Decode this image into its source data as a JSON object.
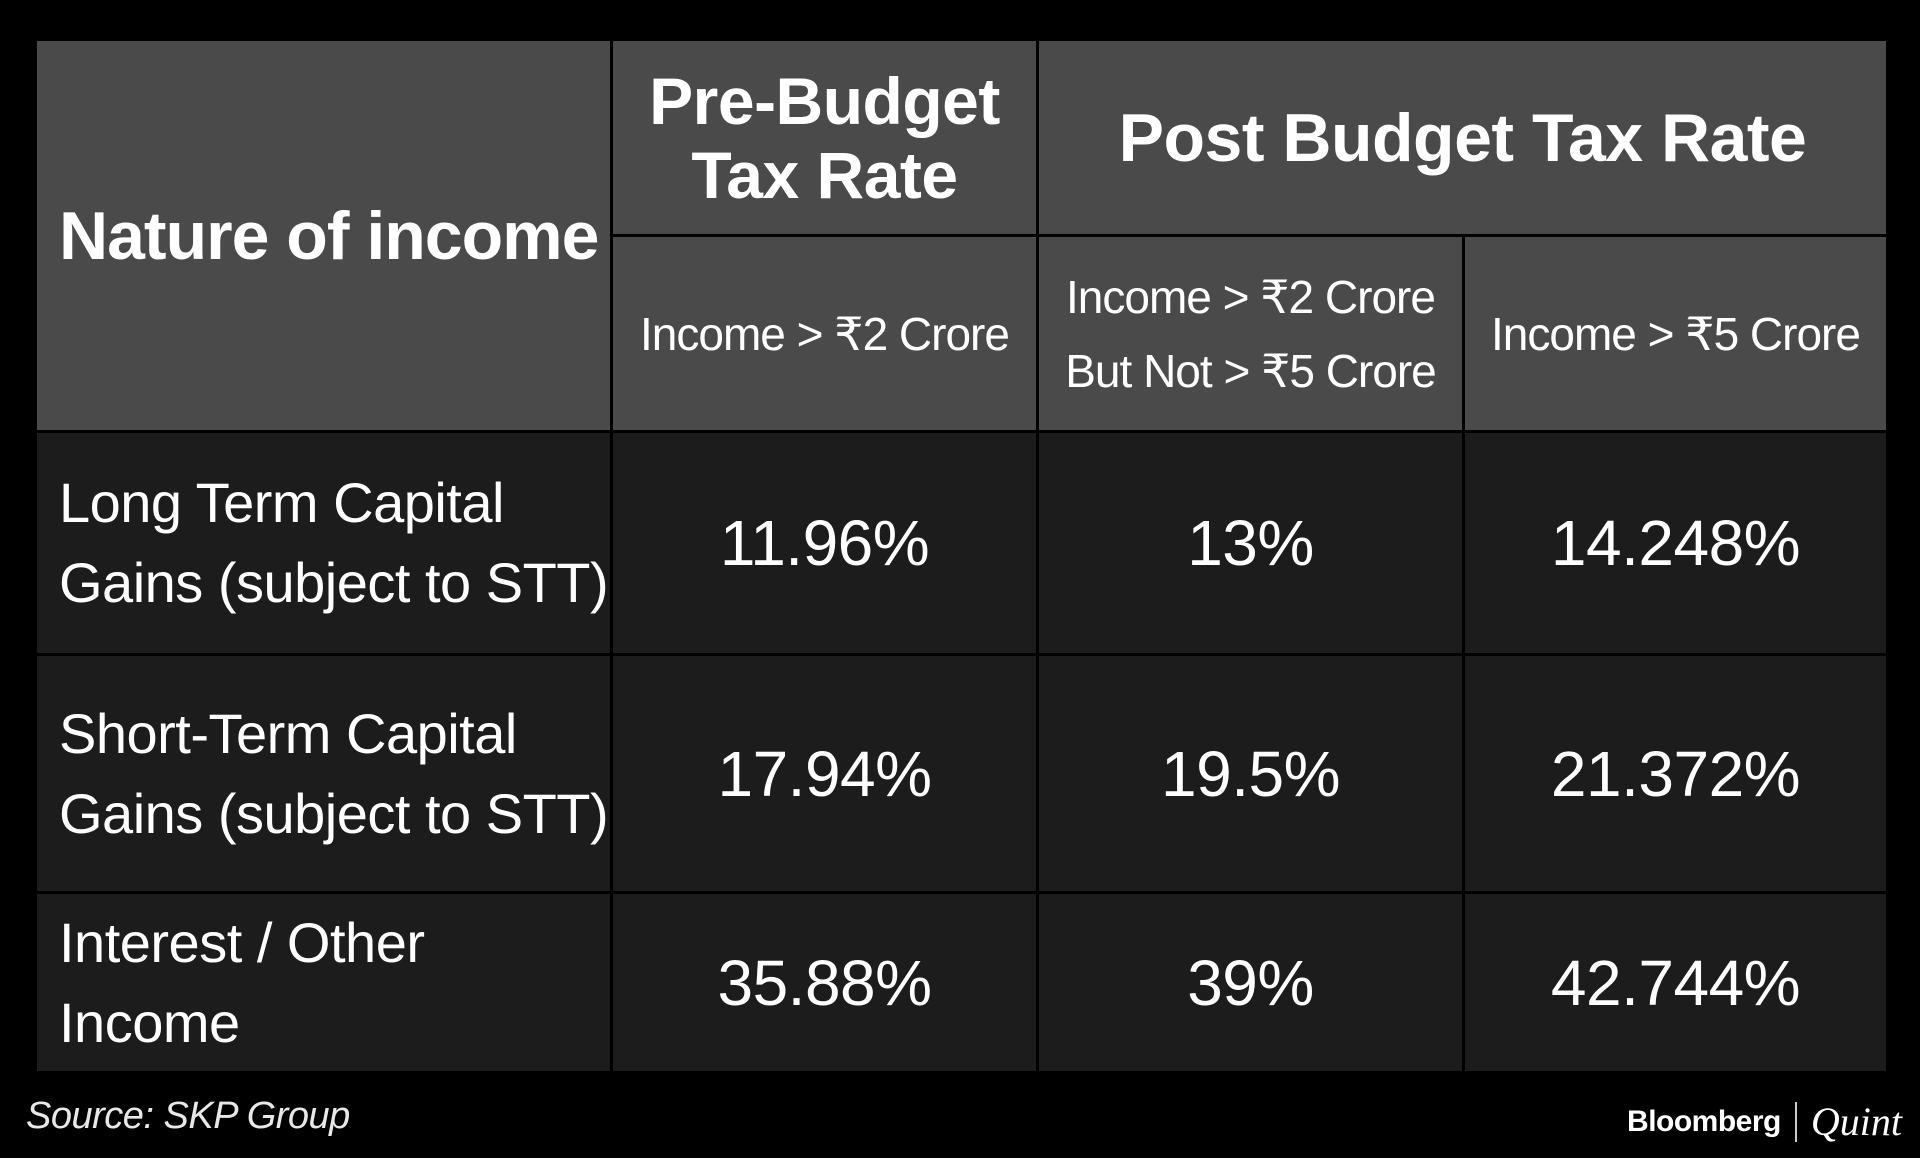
{
  "chart_data": {
    "type": "table",
    "title": "",
    "header": {
      "nature": "Nature of income",
      "pre_budget": "Pre-Budget\nTax Rate",
      "post_budget": "Post Budget Tax Rate",
      "sub_columns": [
        "Income > ₹2 Crore",
        "Income > ₹2 Crore\nBut Not > ₹5 Crore",
        "Income > ₹5 Crore"
      ]
    },
    "rows": [
      {
        "label": "Long Term Capital\nGains (subject to STT)",
        "values": [
          "11.96%",
          "13%",
          "14.248%"
        ]
      },
      {
        "label": "Short-Term Capital\nGains (subject to STT)",
        "values": [
          "17.94%",
          "19.5%",
          "21.372%"
        ]
      },
      {
        "label": "Interest / Other Income",
        "values": [
          "35.88%",
          "39%",
          "42.744%"
        ]
      }
    ]
  },
  "footer": {
    "source": "Source: SKP Group",
    "brand_left": "Bloomberg",
    "brand_right": "Quint"
  },
  "colors": {
    "background": "#000000",
    "header_fill": "#4a4a4a",
    "body_fill": "#1c1c1c",
    "text": "#ffffff"
  }
}
